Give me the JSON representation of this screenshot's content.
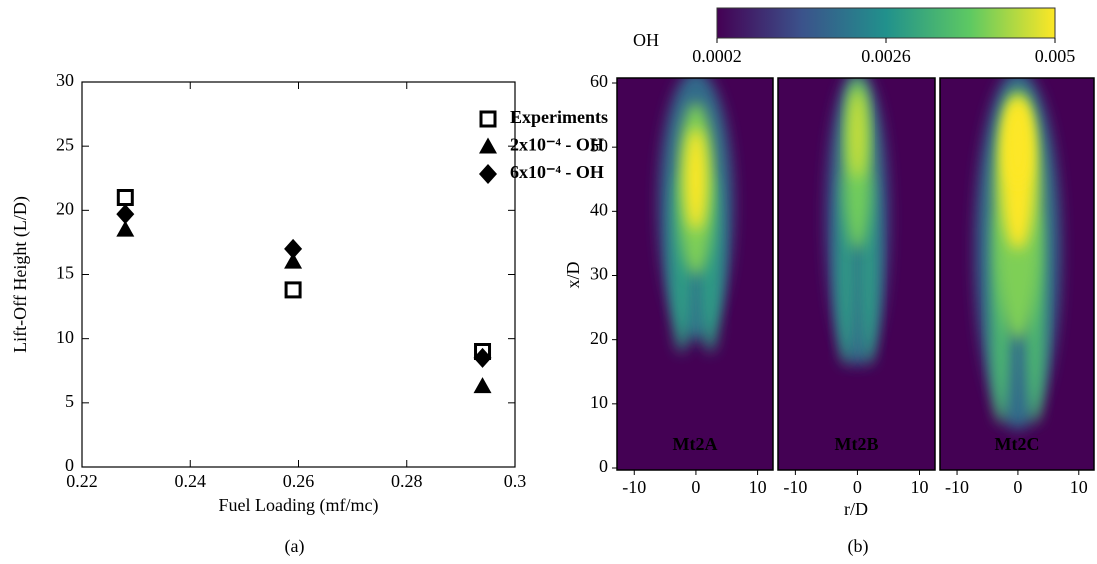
{
  "chart_data": [
    {
      "type": "scatter",
      "xlabel": "Fuel Loading (mf/mc)",
      "ylabel": "Lift-Off Height (L/D)",
      "panel_label": "(a)",
      "xlim": [
        0.22,
        0.3
      ],
      "xticks": [
        0.22,
        0.24,
        0.26,
        0.28,
        0.3
      ],
      "ylim": [
        0,
        30
      ],
      "yticks": [
        0,
        5,
        10,
        15,
        20,
        25,
        30
      ],
      "legend": "upper right",
      "series": [
        {
          "name": "Experiments",
          "color": "#000000",
          "marker": "square",
          "x": [
            0.228,
            0.259,
            0.294
          ],
          "values": [
            21,
            13.8,
            9
          ]
        },
        {
          "name": "2x10⁻⁴ - OH",
          "color": "#000000",
          "marker": "triangle",
          "x": [
            0.228,
            0.259,
            0.294
          ],
          "values": [
            18.5,
            16,
            6.3
          ]
        },
        {
          "name": "6x10⁻⁴ - OH",
          "color": "#000000",
          "marker": "diamond",
          "x": [
            0.228,
            0.259,
            0.294
          ],
          "values": [
            19.7,
            17,
            8.5
          ]
        }
      ]
    },
    {
      "type": "heatmap",
      "panels": [
        "Mt2A",
        "Mt2B",
        "Mt2C"
      ],
      "xlabel": "r/D",
      "ylabel": "x/D",
      "panel_label": "(b)",
      "xlim": [
        -12.8,
        12.5
      ],
      "xticks": [
        -10,
        0,
        10
      ],
      "ylim": [
        0,
        60
      ],
      "yticks": [
        0,
        10,
        20,
        30,
        40,
        50,
        60
      ],
      "colorbar": {
        "label": "OH",
        "lim": [
          0.0002,
          0.005
        ],
        "ticks": [
          0.0002,
          0.0026,
          0.005
        ],
        "colors": [
          "#440154",
          "#3b528b",
          "#21918c",
          "#5ec962",
          "#fde725"
        ]
      }
    }
  ]
}
